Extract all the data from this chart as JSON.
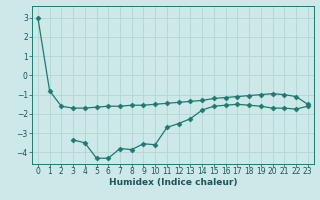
{
  "xlabel": "Humidex (Indice chaleur)",
  "ylabel": "",
  "bg_color": "#cde8e8",
  "grid_color": "#b8d8d8",
  "line_color": "#1e7a6e",
  "spine_color": "#1e7a6e",
  "xlim": [
    -0.5,
    23.5
  ],
  "ylim": [
    -4.6,
    3.6
  ],
  "yticks": [
    -4,
    -3,
    -2,
    -1,
    0,
    1,
    2,
    3
  ],
  "xticks": [
    0,
    1,
    2,
    3,
    4,
    5,
    6,
    7,
    8,
    9,
    10,
    11,
    12,
    13,
    14,
    15,
    16,
    17,
    18,
    19,
    20,
    21,
    22,
    23
  ],
  "line1_x": [
    0,
    1,
    2,
    3,
    4,
    5,
    6,
    7,
    8,
    9,
    10,
    11,
    12,
    13,
    14,
    15,
    16,
    17,
    18,
    19,
    20,
    21,
    22,
    23
  ],
  "line1_y": [
    3.0,
    -0.8,
    -1.6,
    -1.7,
    -1.7,
    -1.65,
    -1.6,
    -1.6,
    -1.55,
    -1.55,
    -1.5,
    -1.45,
    -1.4,
    -1.35,
    -1.3,
    -1.2,
    -1.15,
    -1.1,
    -1.05,
    -1.0,
    -0.95,
    -1.0,
    -1.1,
    -1.5
  ],
  "line2_x": [
    3,
    4,
    5,
    6,
    7,
    8,
    9,
    10,
    11,
    12,
    13,
    14,
    15,
    16,
    17,
    18,
    19,
    20,
    21,
    22,
    23
  ],
  "line2_y": [
    -3.35,
    -3.5,
    -4.3,
    -4.3,
    -3.8,
    -3.85,
    -3.55,
    -3.6,
    -2.7,
    -2.5,
    -2.25,
    -1.8,
    -1.6,
    -1.55,
    -1.5,
    -1.55,
    -1.6,
    -1.7,
    -1.7,
    -1.75,
    -1.6
  ],
  "marker": "D",
  "markersize": 2.5,
  "linewidth": 0.9,
  "tick_fontsize": 5.5,
  "xlabel_fontsize": 6.5,
  "tick_color": "#1e5555"
}
